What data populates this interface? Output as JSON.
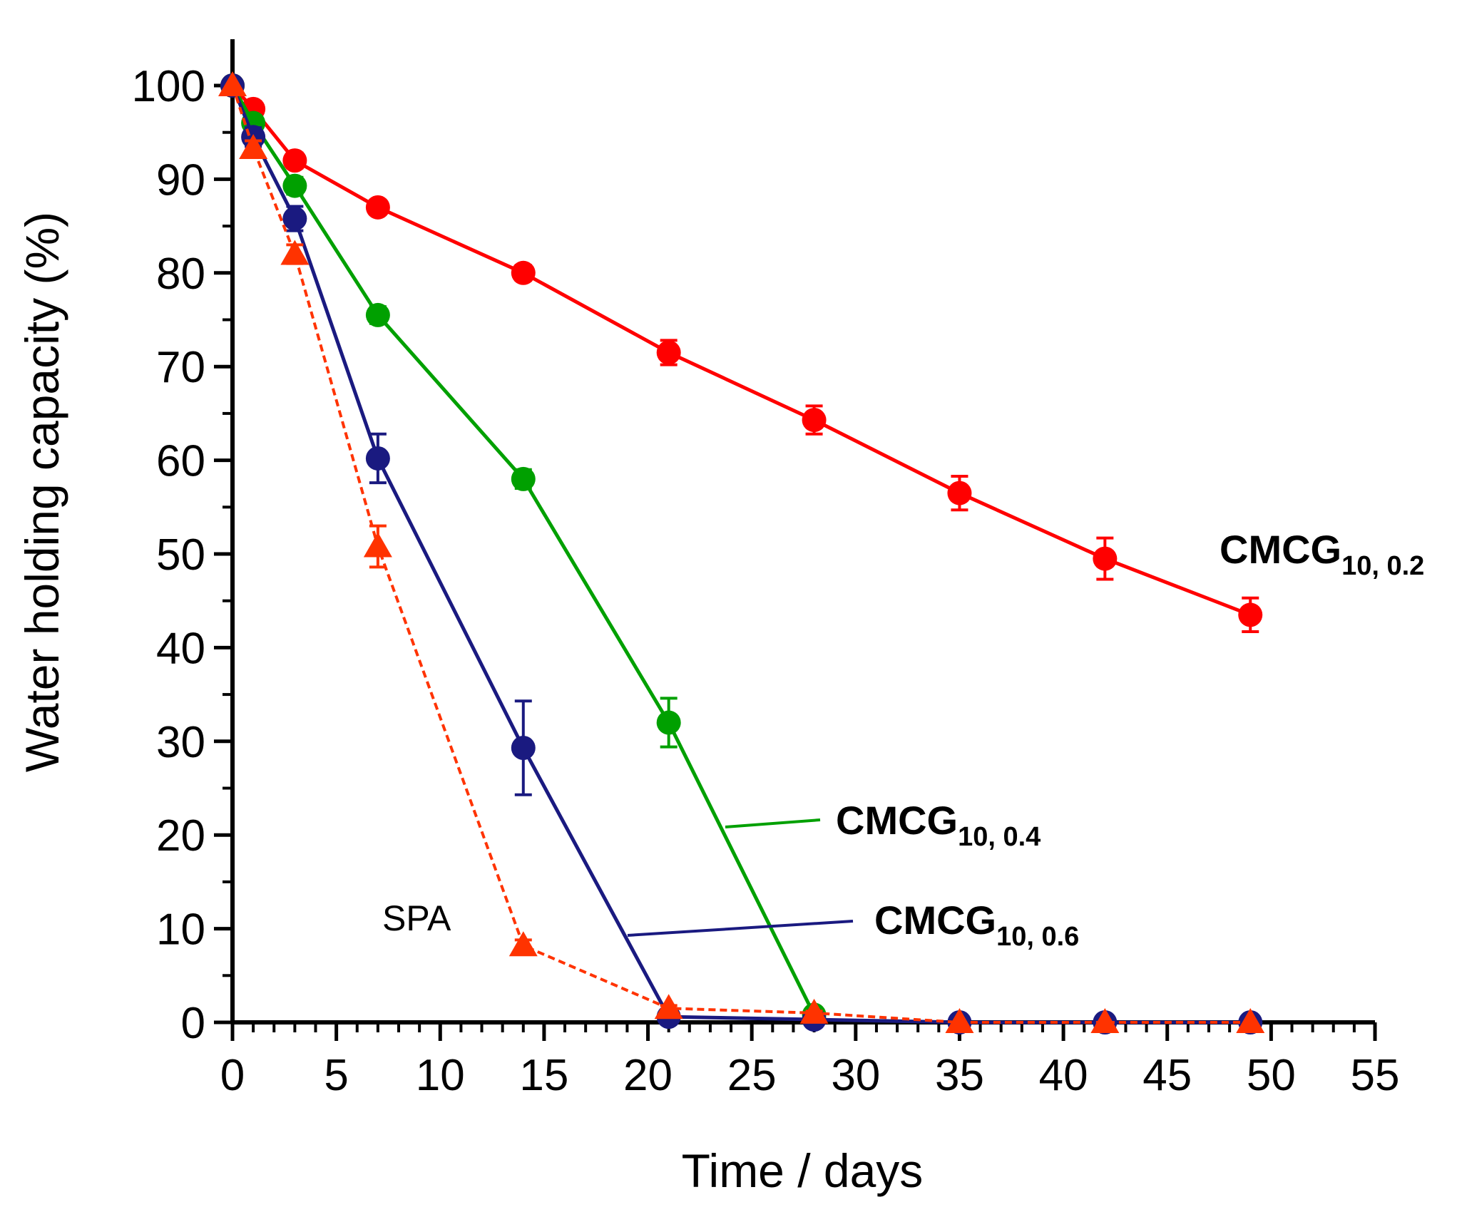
{
  "chart_data": {
    "type": "line",
    "title": "",
    "xlabel": "Time / days",
    "ylabel": "Water holding capacity (%)",
    "xlim": [
      0,
      55
    ],
    "ylim": [
      0,
      100
    ],
    "xticks": [
      "0",
      "5",
      "10",
      "15",
      "20",
      "25",
      "30",
      "35",
      "40",
      "45",
      "50",
      "55"
    ],
    "yticks": [
      "0",
      "10",
      "20",
      "30",
      "40",
      "50",
      "60",
      "70",
      "80",
      "90",
      "100"
    ],
    "grid": false,
    "legend": "none",
    "series": [
      {
        "name": "CMCG10, 0.2",
        "label_main": "CMCG",
        "label_sub": "10, 0.2",
        "color": "#ff0000",
        "marker": "circle",
        "line": "solid",
        "x": [
          0,
          1,
          3,
          7,
          14,
          21,
          28,
          35,
          42,
          49
        ],
        "y": [
          100,
          97.5,
          92,
          87,
          80,
          71.5,
          64.3,
          56.5,
          49.5,
          43.5
        ],
        "err": [
          0,
          0.8,
          0.8,
          0.7,
          0.8,
          1.3,
          1.5,
          1.8,
          2.2,
          1.8
        ]
      },
      {
        "name": "CMCG10, 0.4",
        "label_main": "CMCG",
        "label_sub": "10, 0.4",
        "color": "#00a000",
        "marker": "circle",
        "line": "solid",
        "x": [
          0,
          1,
          3,
          7,
          14,
          21,
          28
        ],
        "y": [
          100,
          96,
          89.3,
          75.5,
          58,
          32,
          0.8
        ],
        "err": [
          0,
          0.8,
          0.9,
          0.9,
          1,
          2.6,
          0.4
        ]
      },
      {
        "name": "CMCG10, 0.6",
        "label_main": "CMCG",
        "label_sub": "10, 0.6",
        "color": "#1a1a80",
        "marker": "circle",
        "line": "solid",
        "x": [
          0,
          1,
          3,
          7,
          14,
          21,
          28,
          35,
          42,
          49
        ],
        "y": [
          100,
          94.5,
          85.8,
          60.2,
          29.3,
          0.6,
          0.3,
          0,
          0,
          0
        ],
        "err": [
          0,
          1,
          1.3,
          2.6,
          5,
          0.3,
          0.2,
          0,
          0,
          0
        ]
      },
      {
        "name": "SPA",
        "label_main": "SPA",
        "label_sub": "",
        "color": "#ff3300",
        "marker": "triangle",
        "line": "dashed",
        "x": [
          0,
          1,
          3,
          7,
          14,
          21,
          28,
          35,
          42,
          49
        ],
        "y": [
          100,
          93.3,
          82,
          50.8,
          8.2,
          1.5,
          1,
          0,
          0,
          0
        ],
        "err": [
          0,
          0.8,
          1,
          2.2,
          0.6,
          0.3,
          0.2,
          0,
          0,
          0
        ]
      }
    ]
  }
}
